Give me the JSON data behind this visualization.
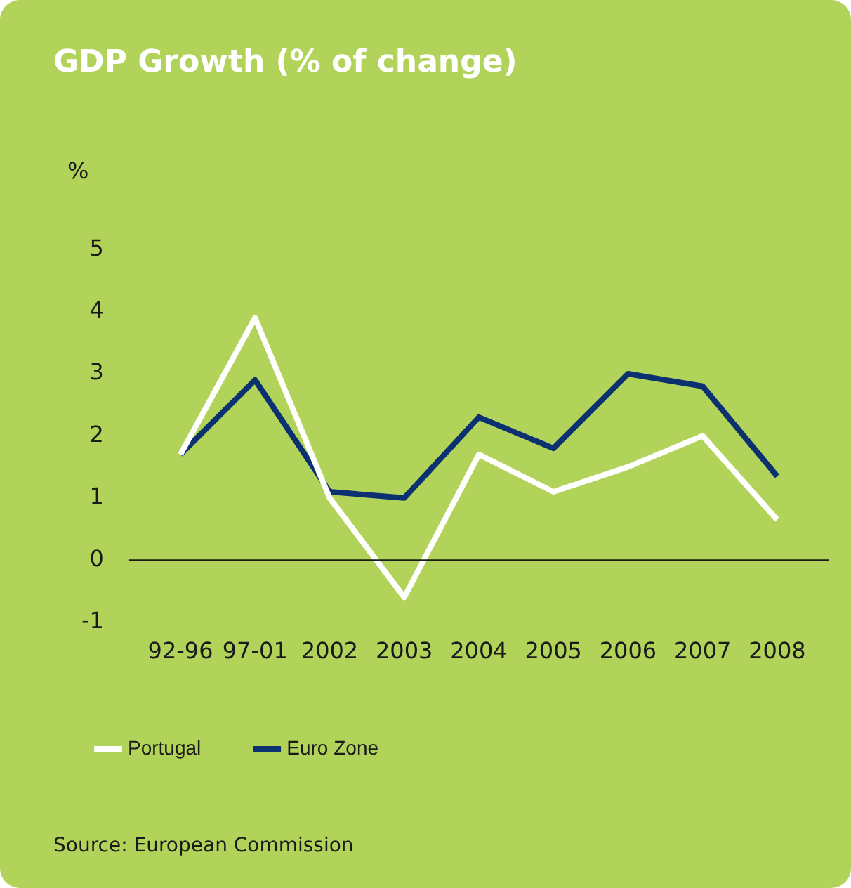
{
  "chart_data": {
    "type": "line",
    "title": "GDP Growth (% of change)",
    "ylabel": "%",
    "categories": [
      "92-96",
      "97-01",
      "2002",
      "2003",
      "2004",
      "2005",
      "2006",
      "2007",
      "2008"
    ],
    "series": [
      {
        "name": "Portugal",
        "color": "#ffffff",
        "values": [
          1.7,
          3.9,
          1.0,
          -0.6,
          1.7,
          1.1,
          1.5,
          2.0,
          0.65
        ]
      },
      {
        "name": "Euro Zone",
        "color": "#0c3170",
        "values": [
          1.7,
          2.9,
          1.1,
          1.0,
          2.3,
          1.8,
          3.0,
          2.8,
          1.35
        ]
      }
    ],
    "ylim": [
      -1,
      5
    ],
    "yticks": [
      -1,
      0,
      1,
      2,
      3,
      4,
      5
    ],
    "grid": false,
    "legend": "bottom left",
    "marker": "none",
    "ref_lines": [
      {
        "axis": "y",
        "value": 0,
        "color": "#1a1a1a"
      }
    ],
    "annotations": [
      "Source: European Commission"
    ]
  }
}
